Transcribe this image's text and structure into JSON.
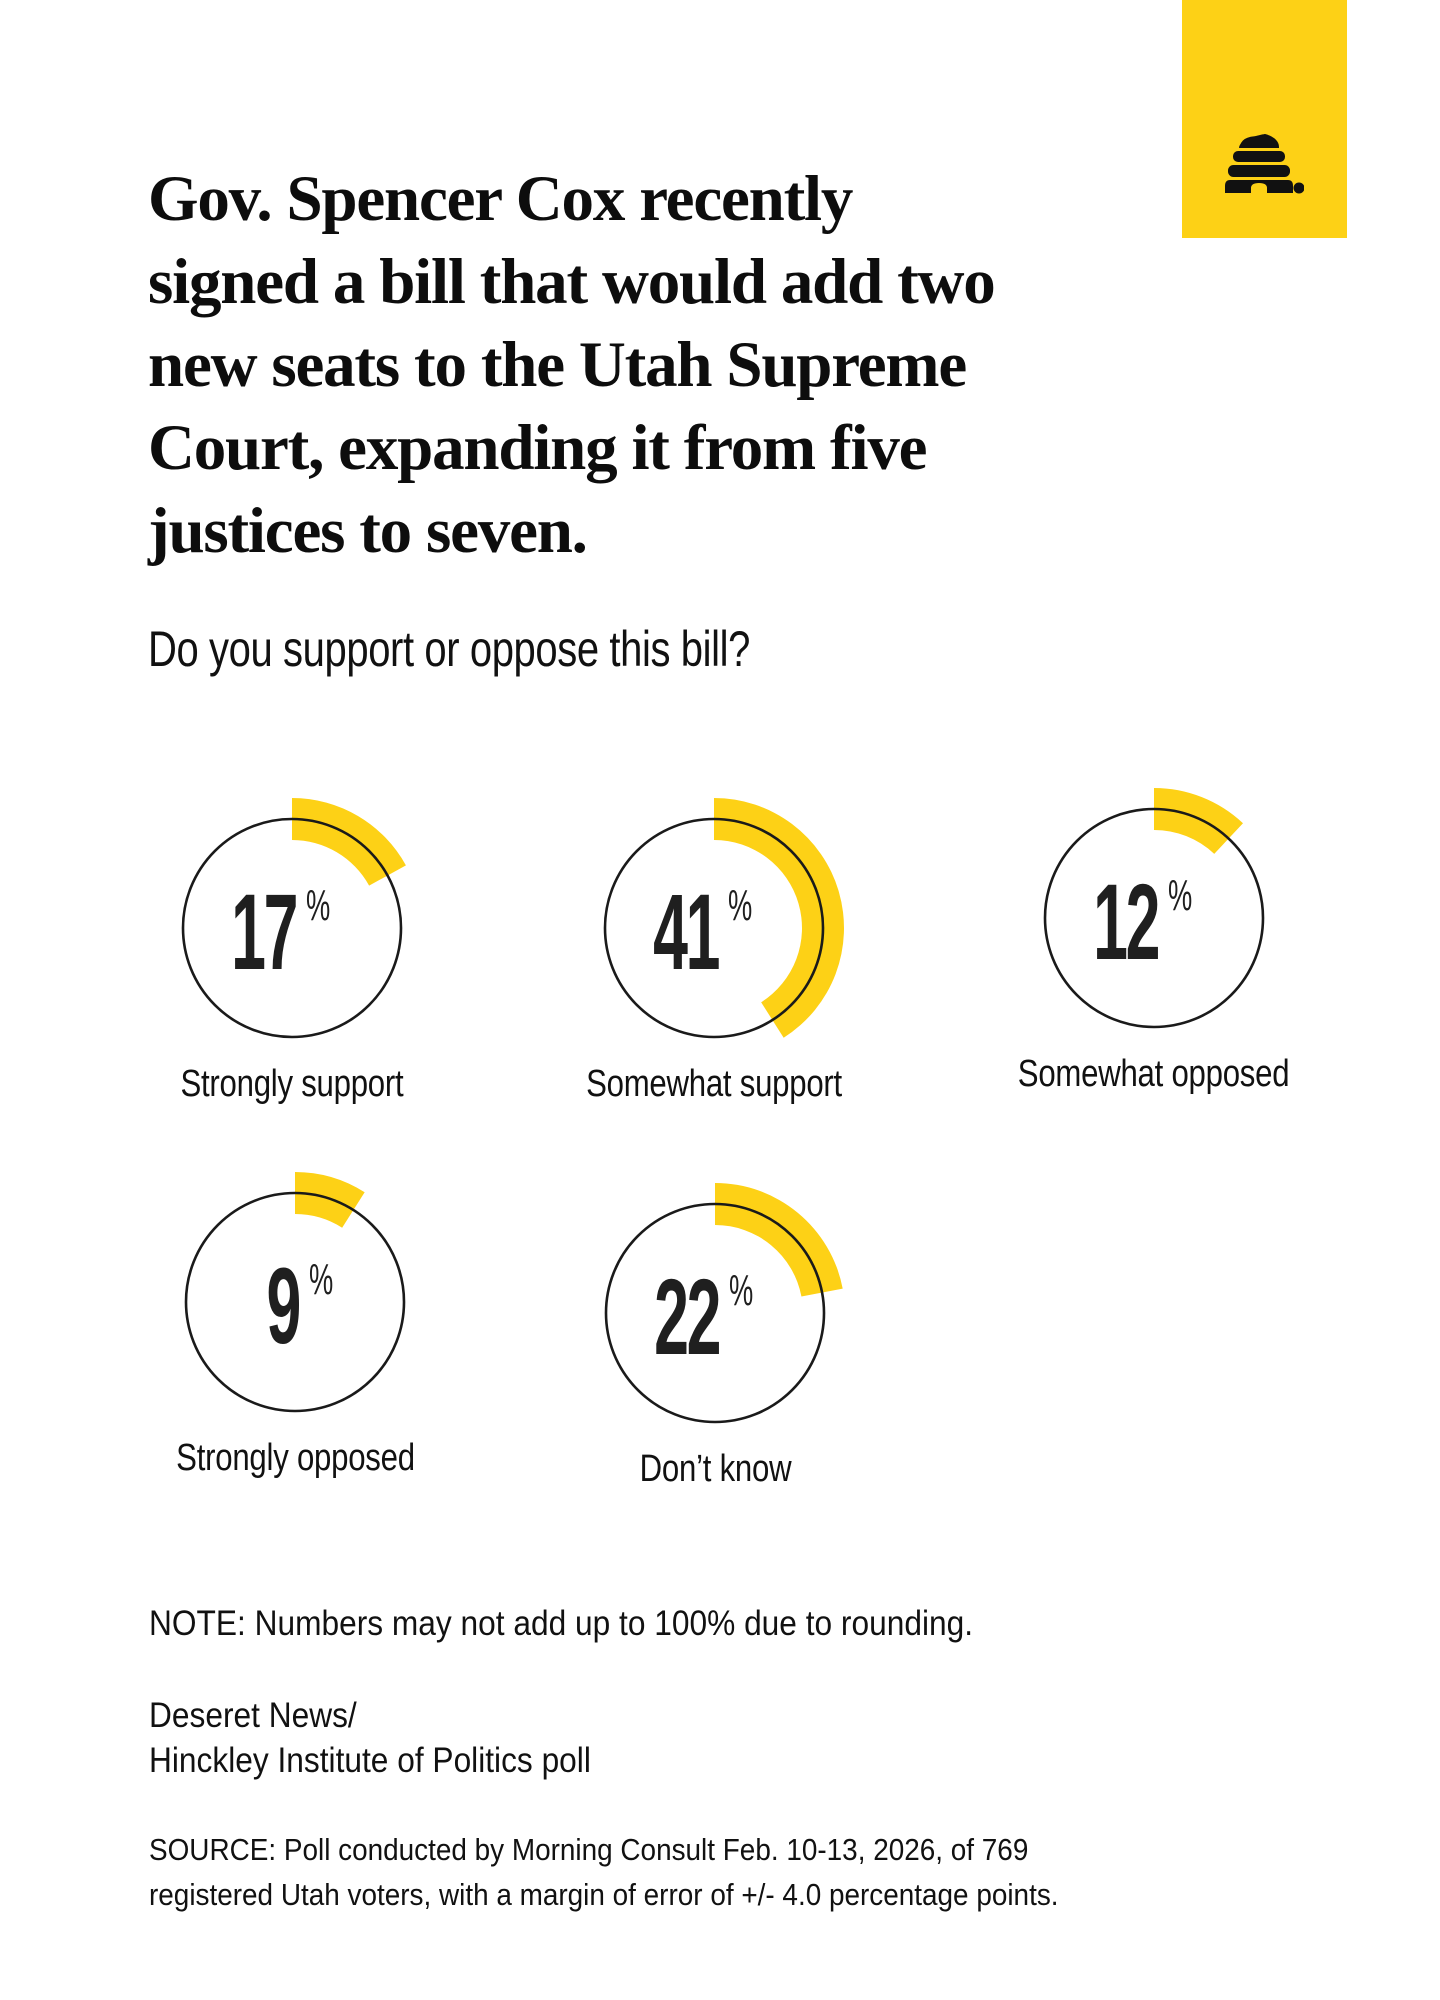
{
  "brand": {
    "logo_icon": "beehive-icon",
    "accent_color": "#FDD116",
    "ring_color": "#1a1a1a",
    "text_color": "#1f1f1f"
  },
  "headline": {
    "lines": [
      "Gov. Spencer Cox recently",
      "signed a bill that would add two",
      "new seats to the Utah Supreme",
      "Court, expanding it from five",
      "justices to seven."
    ]
  },
  "question": "Do you support or oppose this bill?",
  "results": [
    {
      "label": "Strongly support",
      "value": 17,
      "unit": "%"
    },
    {
      "label": "Somewhat support",
      "value": 41,
      "unit": "%"
    },
    {
      "label": "Somewhat opposed",
      "value": 12,
      "unit": "%"
    },
    {
      "label": "Strongly opposed",
      "value": 9,
      "unit": "%"
    },
    {
      "label": "Don’t know",
      "value": 22,
      "unit": "%"
    }
  ],
  "footer": {
    "note": "NOTE: Numbers may not add up to 100% due to rounding.",
    "credit_lines": [
      "Deseret News/",
      "Hinckley Institute of Politics poll"
    ],
    "source_lines": [
      "SOURCE: Poll conducted by Morning Consult Feb. 10-13, 2026, of 769",
      "registered Utah voters, with a margin of error of +/- 4.0 percentage points."
    ]
  },
  "chart_data": {
    "type": "donut",
    "title": "Gov. Spencer Cox recently signed a bill that would add two new seats to the Utah Supreme Court, expanding it from five justices to seven.",
    "subtitle": "Do you support or oppose this bill?",
    "categories": [
      "Strongly support",
      "Somewhat support",
      "Somewhat opposed",
      "Strongly opposed",
      "Don’t know"
    ],
    "values": [
      17,
      41,
      12,
      9,
      22
    ],
    "unit": "%",
    "xlabel": "",
    "ylabel": "",
    "ylim": [
      0,
      100
    ],
    "note": "Numbers may not add up to 100% due to rounding.",
    "source": "Poll conducted by Morning Consult Feb. 10-13, 2026, of 769 registered Utah voters, with a margin of error of +/- 4.0 percentage points."
  }
}
